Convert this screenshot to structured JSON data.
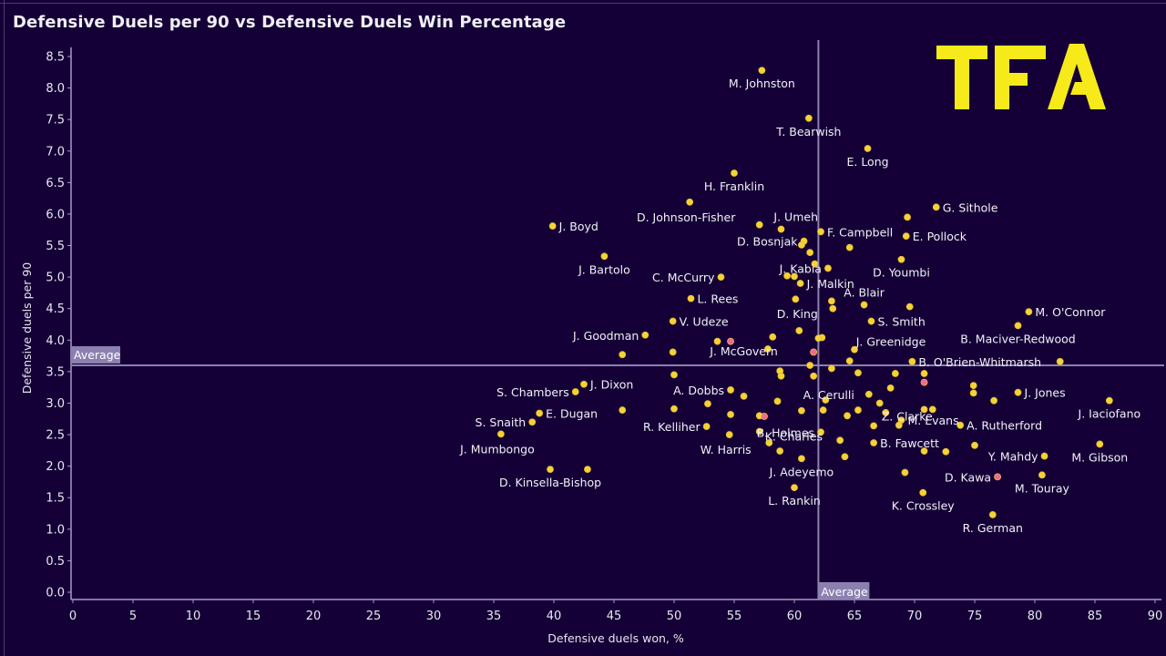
{
  "header": {
    "title": "Defensive Duels per 90 vs Defensive Duels Win Percentage",
    "logo_text": "TFA"
  },
  "colors": {
    "background": "#140036",
    "point": "#f5d13a",
    "highlight_point": "#f06b8f",
    "logo": "#f7ea1b",
    "average_line": "#8c80b0",
    "average_label_bg": "#8c80b0"
  },
  "chart_data": {
    "type": "scatter",
    "title": "Defensive Duels per 90 vs Defensive Duels Win Percentage",
    "xlabel": "Defensive duels won, %",
    "ylabel": "Defensive duels per 90",
    "xlim": [
      0,
      90
    ],
    "ylim": [
      0,
      8.5
    ],
    "x_ticks": [
      "0",
      "5",
      "10",
      "15",
      "20",
      "25",
      "30",
      "35",
      "40",
      "45",
      "50",
      "55",
      "60",
      "65",
      "70",
      "75",
      "80",
      "85",
      "90"
    ],
    "y_ticks": [
      "0.0",
      "0.5",
      "1.0",
      "1.5",
      "2.0",
      "2.5",
      "3.0",
      "3.5",
      "4.0",
      "4.5",
      "5.0",
      "5.5",
      "6.0",
      "6.5",
      "7.0",
      "7.5",
      "8.0",
      "8.5"
    ],
    "grid": false,
    "averages": {
      "x": 62.0,
      "x_label": "Average",
      "y": 3.6,
      "y_label": "Average"
    },
    "points": [
      {
        "name": "M. Johnston",
        "x": 57.3,
        "y": 8.28,
        "label_pos": "below"
      },
      {
        "name": "T. Bearwish",
        "x": 61.2,
        "y": 7.52,
        "label_pos": "below"
      },
      {
        "name": "E. Long",
        "x": 66.1,
        "y": 7.04,
        "label_pos": "below"
      },
      {
        "name": "H. Franklin",
        "x": 55.0,
        "y": 6.65,
        "label_pos": "below"
      },
      {
        "name": "D. Johnson-Fisher",
        "x": 51.3,
        "y": 6.19,
        "label_pos": "below-left"
      },
      {
        "name": "G. Sithole",
        "x": 71.8,
        "y": 6.11,
        "label_pos": "right"
      },
      {
        "name": "",
        "x": 69.4,
        "y": 5.95
      },
      {
        "name": "J. Boyd",
        "x": 39.9,
        "y": 5.81,
        "label_pos": "right"
      },
      {
        "name": "J. Umeh",
        "x": 57.1,
        "y": 5.83,
        "label_pos": "above-right"
      },
      {
        "name": "",
        "x": 58.9,
        "y": 5.76
      },
      {
        "name": "F. Campbell",
        "x": 62.2,
        "y": 5.72,
        "label_pos": "right"
      },
      {
        "name": "E. Pollock",
        "x": 69.3,
        "y": 5.65,
        "label_pos": "right"
      },
      {
        "name": "D. Bosnjak",
        "x": 60.8,
        "y": 5.57,
        "label_pos": "left"
      },
      {
        "name": "",
        "x": 60.6,
        "y": 5.51
      },
      {
        "name": "",
        "x": 64.6,
        "y": 5.47
      },
      {
        "name": "",
        "x": 61.3,
        "y": 5.39
      },
      {
        "name": "J. Bartolo",
        "x": 44.2,
        "y": 5.33,
        "label_pos": "below"
      },
      {
        "name": "D. Youmbi",
        "x": 68.9,
        "y": 5.28,
        "label_pos": "below"
      },
      {
        "name": "",
        "x": 61.7,
        "y": 5.21
      },
      {
        "name": "J. Kabia",
        "x": 62.8,
        "y": 5.14,
        "label_pos": "left"
      },
      {
        "name": "",
        "x": 59.4,
        "y": 5.02
      },
      {
        "name": "",
        "x": 60.0,
        "y": 5.01
      },
      {
        "name": "C. McCurry",
        "x": 53.9,
        "y": 5.0,
        "label_pos": "left"
      },
      {
        "name": "J. Malkin",
        "x": 60.5,
        "y": 4.9,
        "label_pos": "right"
      },
      {
        "name": "L. Rees",
        "x": 51.4,
        "y": 4.66,
        "label_pos": "right"
      },
      {
        "name": "",
        "x": 60.1,
        "y": 4.65
      },
      {
        "name": "",
        "x": 63.1,
        "y": 4.62
      },
      {
        "name": "A. Blair",
        "x": 65.8,
        "y": 4.56,
        "label_pos": "above"
      },
      {
        "name": "",
        "x": 69.6,
        "y": 4.53
      },
      {
        "name": "",
        "x": 63.2,
        "y": 4.5
      },
      {
        "name": "M. O'Connor",
        "x": 79.5,
        "y": 4.45,
        "label_pos": "right"
      },
      {
        "name": "V. Udeze",
        "x": 49.9,
        "y": 4.3,
        "label_pos": "right"
      },
      {
        "name": "S. Smith",
        "x": 66.4,
        "y": 4.3,
        "label_pos": "right"
      },
      {
        "name": "B. Maciver-Redwood",
        "x": 78.6,
        "y": 4.23,
        "label_pos": "below"
      },
      {
        "name": "D. King",
        "x": 60.4,
        "y": 4.15,
        "label_pos": "above-left"
      },
      {
        "name": "J. Goodman",
        "x": 47.6,
        "y": 4.08,
        "label_pos": "left"
      },
      {
        "name": "",
        "x": 58.2,
        "y": 4.05
      },
      {
        "name": "",
        "x": 62.3,
        "y": 4.04
      },
      {
        "name": "",
        "x": 62.0,
        "y": 4.03
      },
      {
        "name": "",
        "x": 53.6,
        "y": 3.98
      },
      {
        "name": "",
        "x": 54.7,
        "y": 3.98,
        "highlight": true
      },
      {
        "name": "",
        "x": 57.8,
        "y": 3.86
      },
      {
        "name": "J. Greenidge",
        "x": 65.0,
        "y": 3.85,
        "label_pos": "above-right"
      },
      {
        "name": "",
        "x": 49.9,
        "y": 3.81
      },
      {
        "name": "",
        "x": 61.6,
        "y": 3.81,
        "highlight": true
      },
      {
        "name": "J. McGovern",
        "x": 45.7,
        "y": 3.77,
        "label_pos": "right-far"
      },
      {
        "name": "B. O'Brien-Whitmarsh",
        "x": 69.8,
        "y": 3.66,
        "label_pos": "right"
      },
      {
        "name": "",
        "x": 64.6,
        "y": 3.67
      },
      {
        "name": "",
        "x": 82.1,
        "y": 3.66
      },
      {
        "name": "",
        "x": 61.3,
        "y": 3.6
      },
      {
        "name": "",
        "x": 63.1,
        "y": 3.55
      },
      {
        "name": "",
        "x": 58.8,
        "y": 3.51
      },
      {
        "name": "",
        "x": 65.3,
        "y": 3.48
      },
      {
        "name": "",
        "x": 68.4,
        "y": 3.47
      },
      {
        "name": "",
        "x": 70.8,
        "y": 3.47
      },
      {
        "name": "",
        "x": 50.0,
        "y": 3.45
      },
      {
        "name": "",
        "x": 58.9,
        "y": 3.43
      },
      {
        "name": "",
        "x": 61.6,
        "y": 3.43
      },
      {
        "name": "",
        "x": 70.8,
        "y": 3.33,
        "highlight": true
      },
      {
        "name": "J. Dixon",
        "x": 42.5,
        "y": 3.3,
        "label_pos": "right"
      },
      {
        "name": "",
        "x": 74.9,
        "y": 3.28
      },
      {
        "name": "",
        "x": 68.0,
        "y": 3.24
      },
      {
        "name": "A. Dobbs",
        "x": 54.7,
        "y": 3.21,
        "label_pos": "left"
      },
      {
        "name": "S. Chambers",
        "x": 41.8,
        "y": 3.18,
        "label_pos": "left"
      },
      {
        "name": "J. Jones",
        "x": 78.6,
        "y": 3.17,
        "label_pos": "right"
      },
      {
        "name": "",
        "x": 74.9,
        "y": 3.16
      },
      {
        "name": "A. Cerulli",
        "x": 66.2,
        "y": 3.14,
        "label_pos": "left-far"
      },
      {
        "name": "",
        "x": 55.8,
        "y": 3.11
      },
      {
        "name": "",
        "x": 76.6,
        "y": 3.04
      },
      {
        "name": "J. Iaciofano",
        "x": 86.2,
        "y": 3.04,
        "label_pos": "below"
      },
      {
        "name": "",
        "x": 58.6,
        "y": 3.03
      },
      {
        "name": "",
        "x": 62.6,
        "y": 3.05
      },
      {
        "name": "Z. Clarke",
        "x": 67.1,
        "y": 3.0,
        "label_pos": "below-right"
      },
      {
        "name": "",
        "x": 52.8,
        "y": 2.99
      },
      {
        "name": "",
        "x": 50.0,
        "y": 2.91
      },
      {
        "name": "",
        "x": 45.7,
        "y": 2.89
      },
      {
        "name": "",
        "x": 62.4,
        "y": 2.89
      },
      {
        "name": "",
        "x": 65.3,
        "y": 2.89
      },
      {
        "name": "",
        "x": 70.8,
        "y": 2.9
      },
      {
        "name": "",
        "x": 71.5,
        "y": 2.9
      },
      {
        "name": "",
        "x": 60.6,
        "y": 2.88
      },
      {
        "name": "",
        "x": 67.6,
        "y": 2.85
      },
      {
        "name": "E. Dugan",
        "x": 38.8,
        "y": 2.84,
        "label_pos": "right"
      },
      {
        "name": "",
        "x": 54.7,
        "y": 2.82
      },
      {
        "name": "",
        "x": 57.1,
        "y": 2.8
      },
      {
        "name": "",
        "x": 57.5,
        "y": 2.79,
        "highlight": true
      },
      {
        "name": "",
        "x": 64.4,
        "y": 2.8
      },
      {
        "name": "M. Evans",
        "x": 68.9,
        "y": 2.73,
        "label_pos": "right"
      },
      {
        "name": "S. Snaith",
        "x": 38.2,
        "y": 2.7,
        "label_pos": "left"
      },
      {
        "name": "",
        "x": 68.7,
        "y": 2.65
      },
      {
        "name": "A. Rutherford",
        "x": 73.8,
        "y": 2.65,
        "label_pos": "right"
      },
      {
        "name": "",
        "x": 66.6,
        "y": 2.64
      },
      {
        "name": "R. Kelliher",
        "x": 52.7,
        "y": 2.63,
        "label_pos": "left"
      },
      {
        "name": "K. Charles",
        "x": 57.1,
        "y": 2.55,
        "label_pos": "right-below"
      },
      {
        "name": "B. Holmes",
        "x": 62.2,
        "y": 2.54,
        "label_pos": "left"
      },
      {
        "name": "J. Mumbongo",
        "x": 35.6,
        "y": 2.51,
        "label_pos": "below-left"
      },
      {
        "name": "W. Harris",
        "x": 54.6,
        "y": 2.5,
        "label_pos": "below-left"
      },
      {
        "name": "",
        "x": 63.8,
        "y": 2.41
      },
      {
        "name": "",
        "x": 57.9,
        "y": 2.37
      },
      {
        "name": "B. Fawcett",
        "x": 66.6,
        "y": 2.37,
        "label_pos": "right"
      },
      {
        "name": "",
        "x": 75.0,
        "y": 2.33
      },
      {
        "name": "M. Gibson",
        "x": 85.4,
        "y": 2.35,
        "label_pos": "below"
      },
      {
        "name": "",
        "x": 58.8,
        "y": 2.24
      },
      {
        "name": "",
        "x": 70.8,
        "y": 2.24
      },
      {
        "name": "",
        "x": 72.6,
        "y": 2.23
      },
      {
        "name": "",
        "x": 64.2,
        "y": 2.15
      },
      {
        "name": "Y. Mahdy",
        "x": 80.8,
        "y": 2.16,
        "label_pos": "left"
      },
      {
        "name": "J. Adeyemo",
        "x": 60.6,
        "y": 2.12,
        "label_pos": "below"
      },
      {
        "name": "D. Kinsella-Bishop",
        "x": 39.7,
        "y": 1.95,
        "label_pos": "below"
      },
      {
        "name": "",
        "x": 42.8,
        "y": 1.95
      },
      {
        "name": "",
        "x": 69.2,
        "y": 1.9
      },
      {
        "name": "M. Touray",
        "x": 80.6,
        "y": 1.86,
        "label_pos": "below"
      },
      {
        "name": "D. Kawa",
        "x": 76.9,
        "y": 1.83,
        "label_pos": "left",
        "highlight": true
      },
      {
        "name": "L. Rankin",
        "x": 60.0,
        "y": 1.66,
        "label_pos": "below"
      },
      {
        "name": "K. Crossley",
        "x": 70.7,
        "y": 1.58,
        "label_pos": "below"
      },
      {
        "name": "R. German",
        "x": 76.5,
        "y": 1.23,
        "label_pos": "below"
      }
    ]
  }
}
